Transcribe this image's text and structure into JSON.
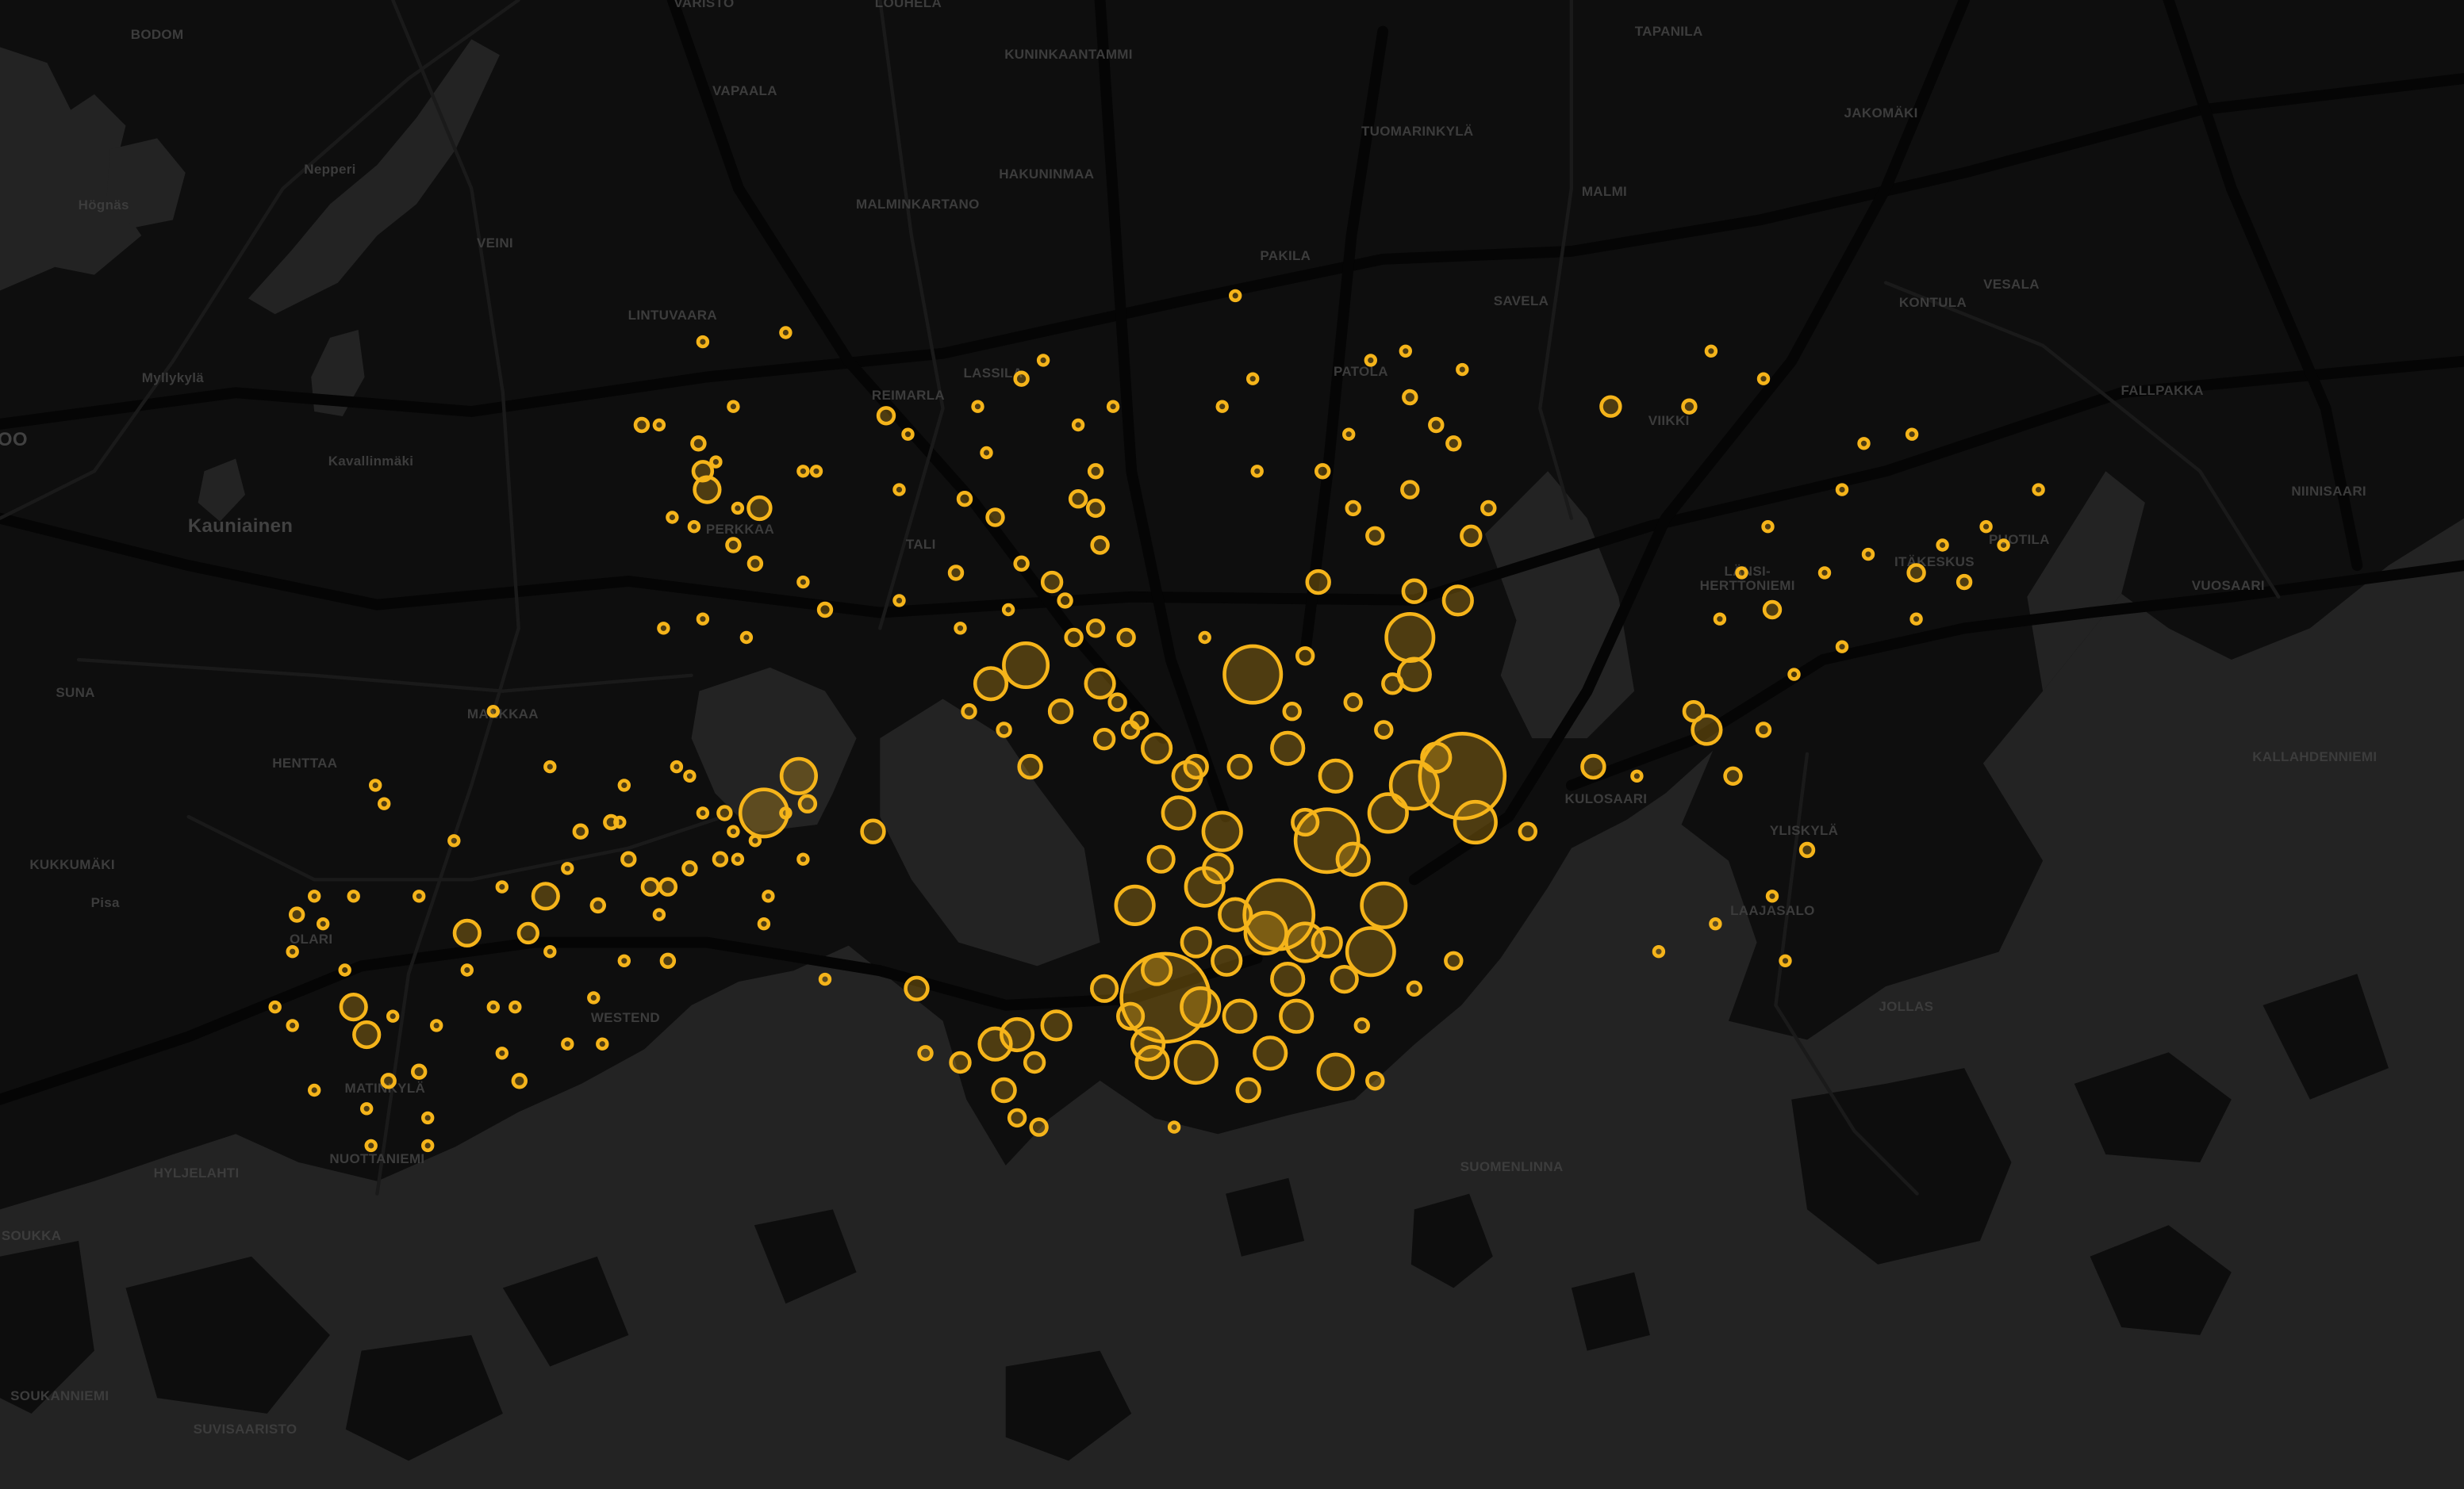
{
  "map": {
    "basemap": "dark",
    "colors": {
      "land": "#0e0e0e",
      "water": "#232323",
      "label": "#3c3c3c",
      "marker": "#f5b41a",
      "marker_fill": "rgba(245,180,26,0.28)"
    },
    "places": [
      "VARISTO",
      "LOUHELA",
      "BODOM",
      "KUNINKAANTAMMI",
      "TAPANILA",
      "VAPAALA",
      "JAKOMÄKI",
      "Nepperi",
      "HAKUNINMAA",
      "TUOMARINKYLÄ",
      "Högnäs",
      "MALMINKARTANO",
      "MALMI",
      "VEINI",
      "PAKILA",
      "SAVELA",
      "KONTULA",
      "VESALA",
      "LINTUVAARA",
      "Myllykylä",
      "PATOLA",
      "REIMARLA",
      "LASSILA",
      "VIIKKI",
      "FALLPAKKA",
      "Kavallinmäki",
      "Kauniainen",
      "PERKKAA",
      "TALI",
      "NIINISAARI",
      "PUOTILA",
      "ITÄKESKUS",
      "LÄNSI-",
      "HERTTONIEMI",
      "VUOSAARI",
      "SUNA",
      "MANKKAA",
      "HENTTAA",
      "KULOSAARI",
      "KALLAHDENNIEMI",
      "KUKKUMÄKI",
      "YLISKYLÄ",
      "Pisa",
      "OLARI",
      "LAAJASALO",
      "WESTEND",
      "JOLLAS",
      "MATINKYLÄ",
      "NUOTTANIEMI",
      "HYLJELAHTI",
      "SUOMENLINNA",
      "SOUKKA",
      "SOUKANNIEMI",
      "SUVISAARISTO",
      "OO"
    ],
    "markers_format": [
      "lat",
      "lon",
      "size"
    ],
    "markers": [
      [
        60.162,
        24.917,
        784
      ],
      [
        60.171,
        24.943,
        484
      ],
      [
        60.186,
        24.985,
        729
      ],
      [
        60.179,
        24.954,
        400
      ],
      [
        60.172,
        24.967,
        196
      ],
      [
        60.167,
        24.964,
        225
      ],
      [
        60.197,
        24.937,
        324
      ],
      [
        60.198,
        24.885,
        196
      ],
      [
        60.201,
        24.973,
        225
      ],
      [
        60.182,
        24.825,
        225
      ],
      [
        60.186,
        24.833,
        121
      ],
      [
        60.196,
        24.877,
        100
      ],
      [
        60.196,
        24.902,
        81
      ],
      [
        60.189,
        24.915,
        81
      ],
      [
        60.18,
        24.93,
        144
      ],
      [
        60.174,
        24.926,
        144
      ],
      [
        60.172,
        24.91,
        144
      ],
      [
        60.155,
        24.924,
        169
      ],
      [
        60.154,
        24.956,
        121
      ],
      [
        60.156,
        24.941,
        100
      ],
      [
        60.155,
        24.914,
        100
      ],
      [
        60.157,
        24.913,
        100
      ],
      [
        60.161,
        24.925,
        144
      ],
      [
        60.16,
        24.934,
        100
      ],
      [
        60.16,
        24.947,
        100
      ],
      [
        60.164,
        24.958,
        64
      ],
      [
        60.197,
        24.974,
        100
      ],
      [
        60.205,
        24.984,
        81
      ],
      [
        60.206,
        24.974,
        49
      ],
      [
        60.181,
        24.988,
        169
      ],
      [
        60.188,
        24.979,
        81
      ],
      [
        60.182,
        24.968,
        144
      ],
      [
        60.185,
        24.974,
        225
      ],
      [
        60.186,
        24.956,
        100
      ],
      [
        60.181,
        24.949,
        64
      ],
      [
        60.177,
        24.96,
        100
      ],
      [
        60.182,
        24.92,
        100
      ],
      [
        60.186,
        24.922,
        81
      ],
      [
        60.177,
        24.916,
        64
      ],
      [
        60.176,
        24.929,
        81
      ],
      [
        60.171,
        24.933,
        100
      ],
      [
        60.169,
        24.94,
        169
      ],
      [
        60.168,
        24.949,
        144
      ],
      [
        60.164,
        24.945,
        100
      ],
      [
        60.168,
        24.954,
        81
      ],
      [
        60.166,
        24.931,
        81
      ],
      [
        60.168,
        24.924,
        81
      ],
      [
        60.165,
        24.915,
        81
      ],
      [
        60.163,
        24.903,
        64
      ],
      [
        60.16,
        24.909,
        64
      ],
      [
        60.189,
        24.945,
        100
      ],
      [
        60.187,
        24.934,
        49
      ],
      [
        60.187,
        24.924,
        49
      ],
      [
        60.192,
        24.911,
        25
      ],
      [
        60.19,
        24.903,
        36
      ],
      [
        60.193,
        24.893,
        49
      ],
      [
        60.187,
        24.886,
        49
      ],
      [
        60.193,
        24.946,
        25
      ],
      [
        60.194,
        24.96,
        25
      ],
      [
        60.196,
        24.969,
        36
      ],
      [
        60.191,
        24.967,
        25
      ],
      [
        60.207,
        24.952,
        49
      ],
      [
        60.199,
        24.949,
        25
      ],
      [
        60.212,
        24.965,
        25
      ],
      [
        60.217,
        24.973,
        25
      ],
      [
        60.215,
        24.96,
        16
      ],
      [
        60.219,
        24.953,
        16
      ],
      [
        60.212,
        24.987,
        36
      ],
      [
        60.215,
        24.991,
        16
      ],
      [
        60.222,
        24.983,
        16
      ],
      [
        60.224,
        24.979,
        16
      ],
      [
        60.231,
        24.964,
        9
      ],
      [
        60.227,
        24.973,
        16
      ],
      [
        60.23,
        24.985,
        9
      ],
      [
        60.232,
        24.972,
        9
      ],
      [
        60.223,
        24.959,
        9
      ],
      [
        60.219,
        24.938,
        9
      ],
      [
        60.226,
        24.93,
        9
      ],
      [
        60.238,
        24.933,
        9
      ],
      [
        60.229,
        24.937,
        9
      ],
      [
        60.226,
        25.019,
        36
      ],
      [
        60.226,
        25.037,
        16
      ],
      [
        60.232,
        25.042,
        9
      ],
      [
        60.229,
        25.054,
        9
      ],
      [
        60.187,
        25.015,
        49
      ],
      [
        60.186,
        25.025,
        9
      ],
      [
        60.191,
        25.041,
        81
      ],
      [
        60.193,
        25.038,
        36
      ],
      [
        60.186,
        25.047,
        25
      ],
      [
        60.191,
        25.054,
        16
      ],
      [
        60.204,
        25.056,
        25
      ],
      [
        60.208,
        25.049,
        9
      ],
      [
        60.203,
        25.044,
        9
      ],
      [
        60.197,
        25.061,
        9
      ],
      [
        60.2,
        25.072,
        9
      ],
      [
        60.208,
        25.068,
        9
      ],
      [
        60.21,
        25.078,
        9
      ],
      [
        60.213,
        25.055,
        9
      ],
      [
        60.217,
        25.072,
        9
      ],
      [
        60.222,
        25.077,
        9
      ],
      [
        60.223,
        25.088,
        9
      ],
      [
        60.208,
        25.089,
        25
      ],
      [
        60.207,
        25.1,
        16
      ],
      [
        60.211,
        25.095,
        9
      ],
      [
        60.213,
        25.105,
        9
      ],
      [
        60.211,
        25.109,
        9
      ],
      [
        60.217,
        25.117,
        9
      ],
      [
        60.203,
        25.089,
        9
      ],
      [
        60.178,
        25.064,
        16
      ],
      [
        60.173,
        25.056,
        9
      ],
      [
        60.17,
        25.043,
        9
      ],
      [
        60.166,
        25.059,
        9
      ],
      [
        60.167,
        25.03,
        9
      ],
      [
        60.18,
        25.0,
        25
      ],
      [
        60.166,
        24.983,
        25
      ],
      [
        60.163,
        24.974,
        16
      ],
      [
        60.159,
        24.962,
        16
      ],
      [
        60.153,
        24.965,
        25
      ],
      [
        60.152,
        24.936,
        49
      ],
      [
        60.148,
        24.919,
        9
      ],
      [
        60.18,
        24.85,
        49
      ],
      [
        60.163,
        24.86,
        49
      ],
      [
        60.164,
        24.839,
        9
      ],
      [
        60.159,
        24.892,
        81
      ],
      [
        60.158,
        24.883,
        100
      ],
      [
        60.157,
        24.878,
        100
      ],
      [
        60.155,
        24.887,
        36
      ],
      [
        60.152,
        24.88,
        49
      ],
      [
        60.149,
        24.883,
        25
      ],
      [
        60.148,
        24.888,
        25
      ],
      [
        60.155,
        24.87,
        36
      ],
      [
        60.156,
        24.862,
        16
      ],
      [
        60.229,
        24.884,
        16
      ],
      [
        60.231,
        24.889,
        9
      ],
      [
        60.224,
        24.897,
        9
      ],
      [
        60.219,
        24.901,
        16
      ],
      [
        60.226,
        24.905,
        9
      ],
      [
        60.221,
        24.876,
        9
      ],
      [
        60.216,
        24.897,
        25
      ],
      [
        60.215,
        24.901,
        25
      ],
      [
        60.214,
        24.878,
        25
      ],
      [
        60.216,
        24.871,
        16
      ],
      [
        60.208,
        24.869,
        16
      ],
      [
        60.205,
        24.856,
        9
      ],
      [
        60.217,
        24.856,
        9
      ],
      [
        60.225,
        24.853,
        25
      ],
      [
        60.223,
        24.858,
        9
      ],
      [
        60.226,
        24.874,
        9
      ],
      [
        60.204,
        24.881,
        9
      ],
      [
        60.209,
        24.884,
        16
      ],
      [
        60.207,
        24.891,
        36
      ],
      [
        60.205,
        24.894,
        16
      ],
      [
        60.202,
        24.901,
        25
      ],
      [
        60.201,
        24.896,
        25
      ],
      [
        60.201,
        24.908,
        25
      ],
      [
        60.211,
        24.902,
        25
      ],
      [
        60.191,
        24.88,
        16
      ],
      [
        60.193,
        24.872,
        16
      ],
      [
        60.194,
        24.906,
        25
      ],
      [
        60.191,
        24.909,
        25
      ],
      [
        60.202,
        24.87,
        9
      ],
      [
        60.201,
        24.926,
        9
      ],
      [
        60.233,
        24.811,
        9
      ],
      [
        60.234,
        24.83,
        9
      ],
      [
        60.224,
        24.801,
        9
      ],
      [
        60.224,
        24.797,
        16
      ],
      [
        60.226,
        24.818,
        9
      ],
      [
        60.222,
        24.81,
        16
      ],
      [
        60.22,
        24.814,
        9
      ],
      [
        60.219,
        24.811,
        36
      ],
      [
        60.217,
        24.812,
        64
      ],
      [
        60.215,
        24.824,
        49
      ],
      [
        60.215,
        24.819,
        9
      ],
      [
        60.213,
        24.809,
        9
      ],
      [
        60.214,
        24.804,
        9
      ],
      [
        60.211,
        24.818,
        16
      ],
      [
        60.209,
        24.823,
        16
      ],
      [
        60.219,
        24.834,
        9
      ],
      [
        60.219,
        24.837,
        9
      ],
      [
        60.204,
        24.839,
        16
      ],
      [
        60.207,
        24.834,
        9
      ],
      [
        60.203,
        24.811,
        9
      ],
      [
        60.202,
        24.802,
        9
      ],
      [
        60.201,
        24.821,
        9
      ],
      [
        60.193,
        24.763,
        9
      ],
      [
        60.185,
        24.736,
        9
      ],
      [
        60.183,
        24.738,
        9
      ],
      [
        60.187,
        24.776,
        9
      ],
      [
        60.185,
        24.793,
        9
      ],
      [
        60.187,
        24.805,
        9
      ],
      [
        60.186,
        24.808,
        9
      ],
      [
        60.182,
        24.811,
        9
      ],
      [
        60.182,
        24.816,
        16
      ],
      [
        60.18,
        24.818,
        9
      ],
      [
        60.177,
        24.819,
        9
      ],
      [
        60.179,
        24.823,
        9
      ],
      [
        60.182,
        24.83,
        9
      ],
      [
        60.183,
        24.835,
        25
      ],
      [
        60.181,
        24.792,
        9
      ],
      [
        60.18,
        24.783,
        16
      ],
      [
        60.181,
        24.79,
        16
      ],
      [
        60.173,
        24.775,
        64
      ],
      [
        60.169,
        24.771,
        36
      ],
      [
        60.169,
        24.757,
        64
      ],
      [
        60.176,
        24.78,
        9
      ],
      [
        60.177,
        24.794,
        16
      ],
      [
        60.174,
        24.803,
        25
      ],
      [
        60.174,
        24.799,
        25
      ],
      [
        60.176,
        24.808,
        16
      ],
      [
        60.177,
        24.815,
        16
      ],
      [
        60.172,
        24.787,
        16
      ],
      [
        60.171,
        24.801,
        9
      ],
      [
        60.166,
        24.803,
        16
      ],
      [
        60.166,
        24.793,
        9
      ],
      [
        60.174,
        24.765,
        9
      ],
      [
        60.179,
        24.754,
        9
      ],
      [
        60.173,
        24.746,
        9
      ],
      [
        60.173,
        24.731,
        9
      ],
      [
        60.173,
        24.722,
        9
      ],
      [
        60.171,
        24.718,
        16
      ],
      [
        60.17,
        24.724,
        9
      ],
      [
        60.167,
        24.717,
        9
      ],
      [
        60.165,
        24.729,
        9
      ],
      [
        60.161,
        24.731,
        64
      ],
      [
        60.158,
        24.734,
        64
      ],
      [
        60.16,
        24.74,
        9
      ],
      [
        60.161,
        24.713,
        9
      ],
      [
        60.159,
        24.717,
        9
      ],
      [
        60.159,
        24.75,
        9
      ],
      [
        60.165,
        24.757,
        9
      ],
      [
        60.161,
        24.763,
        9
      ],
      [
        60.161,
        24.768,
        9
      ],
      [
        60.167,
        24.776,
        9
      ],
      [
        60.162,
        24.786,
        9
      ],
      [
        60.157,
        24.78,
        9
      ],
      [
        60.157,
        24.788,
        9
      ],
      [
        60.156,
        24.765,
        9
      ],
      [
        60.153,
        24.769,
        16
      ],
      [
        60.154,
        24.746,
        16
      ],
      [
        60.153,
        24.739,
        16
      ],
      [
        60.152,
        24.722,
        9
      ],
      [
        60.15,
        24.734,
        9
      ],
      [
        60.149,
        24.748,
        9
      ],
      [
        60.146,
        24.748,
        9
      ],
      [
        60.146,
        24.735,
        9
      ],
      [
        60.173,
        24.826,
        9
      ],
      [
        60.17,
        24.825,
        9
      ],
      [
        60.177,
        24.834,
        9
      ]
    ]
  }
}
